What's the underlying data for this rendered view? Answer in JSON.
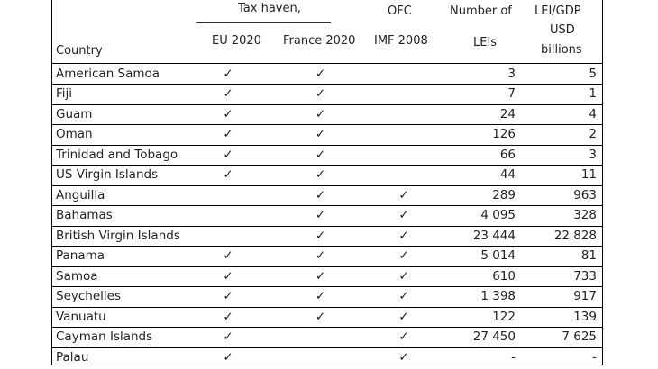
{
  "header": {
    "group_label": "Tax haven,",
    "ofc_label": "OFC",
    "lei_label_line1": "Number of",
    "lei_label_line2": "LEIs",
    "gdp_label_line1": "LEI/GDP",
    "gdp_label_line2": "USD",
    "gdp_label_line3": "billions",
    "country_label": "Country",
    "eu_label": "EU 2020",
    "fr_label": "France 2020",
    "imf_label": "IMF 2008"
  },
  "check_glyph": "✓",
  "rows": [
    {
      "country": "American Samoa",
      "eu": "✓",
      "fr": "✓",
      "ofc": "",
      "lei": "3",
      "gdp": "5"
    },
    {
      "country": "Fiji",
      "eu": "✓",
      "fr": "✓",
      "ofc": "",
      "lei": "7",
      "gdp": "1"
    },
    {
      "country": "Guam",
      "eu": "✓",
      "fr": "✓",
      "ofc": "",
      "lei": "24",
      "gdp": "4"
    },
    {
      "country": "Oman",
      "eu": "✓",
      "fr": "✓",
      "ofc": "",
      "lei": "126",
      "gdp": "2"
    },
    {
      "country": "Trinidad and Tobago",
      "eu": "✓",
      "fr": "✓",
      "ofc": "",
      "lei": "66",
      "gdp": "3"
    },
    {
      "country": "US Virgin Islands",
      "eu": "✓",
      "fr": "✓",
      "ofc": "",
      "lei": "44",
      "gdp": "11"
    },
    {
      "country": "Anguilla",
      "eu": "",
      "fr": "✓",
      "ofc": "✓",
      "lei": "289",
      "gdp": "963"
    },
    {
      "country": "Bahamas",
      "eu": "",
      "fr": "✓",
      "ofc": "✓",
      "lei": "4 095",
      "gdp": "328"
    },
    {
      "country": "British Virgin Islands",
      "eu": "",
      "fr": "✓",
      "ofc": "✓",
      "lei": "23 444",
      "gdp": "22 828"
    },
    {
      "country": "Panama",
      "eu": "✓",
      "fr": "✓",
      "ofc": "✓",
      "lei": "5 014",
      "gdp": "81"
    },
    {
      "country": "Samoa",
      "eu": "✓",
      "fr": "✓",
      "ofc": "✓",
      "lei": "610",
      "gdp": "733"
    },
    {
      "country": "Seychelles",
      "eu": "✓",
      "fr": "✓",
      "ofc": "✓",
      "lei": "1 398",
      "gdp": "917"
    },
    {
      "country": "Vanuatu",
      "eu": "✓",
      "fr": "✓",
      "ofc": "✓",
      "lei": "122",
      "gdp": "139"
    },
    {
      "country": "Cayman Islands",
      "eu": "✓",
      "fr": "",
      "ofc": "✓",
      "lei": "27 450",
      "gdp": "7 625"
    },
    {
      "country": "Palau",
      "eu": "✓",
      "fr": "",
      "ofc": "✓",
      "lei": "-",
      "gdp": "-"
    }
  ]
}
